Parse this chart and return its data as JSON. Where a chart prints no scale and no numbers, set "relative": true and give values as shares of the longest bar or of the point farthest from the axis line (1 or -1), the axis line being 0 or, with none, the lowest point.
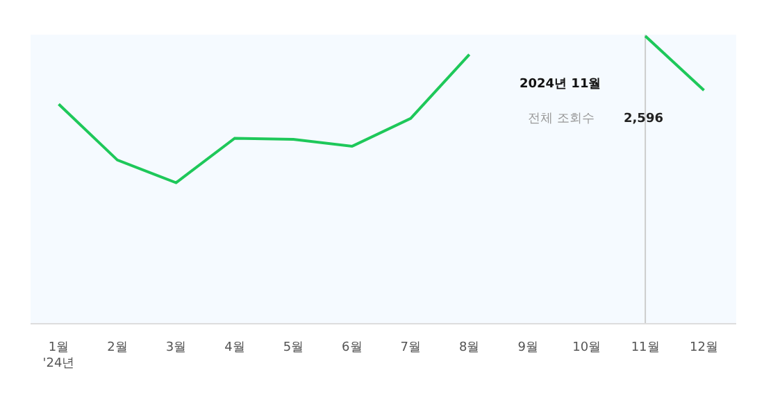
{
  "chart_data": {
    "type": "line",
    "relative": true,
    "categories": [
      "1월\n'24년",
      "2월",
      "3월",
      "4월",
      "5월",
      "6월",
      "7월",
      "8월",
      "9월",
      "10월",
      "11월",
      "12월"
    ],
    "series": [
      {
        "color": "#1ec85a",
        "values": [
          0.763,
          0.568,
          0.489,
          0.644,
          0.64,
          0.616,
          0.713,
          0.936,
          null,
          null,
          1,
          0.811
        ]
      }
    ],
    "ref_lines": [
      {
        "axis": "x",
        "value": "11월",
        "color": "#cccccc"
      }
    ],
    "annotations": [
      "2024년 11월",
      "전체 조회수",
      "2,596"
    ]
  }
}
